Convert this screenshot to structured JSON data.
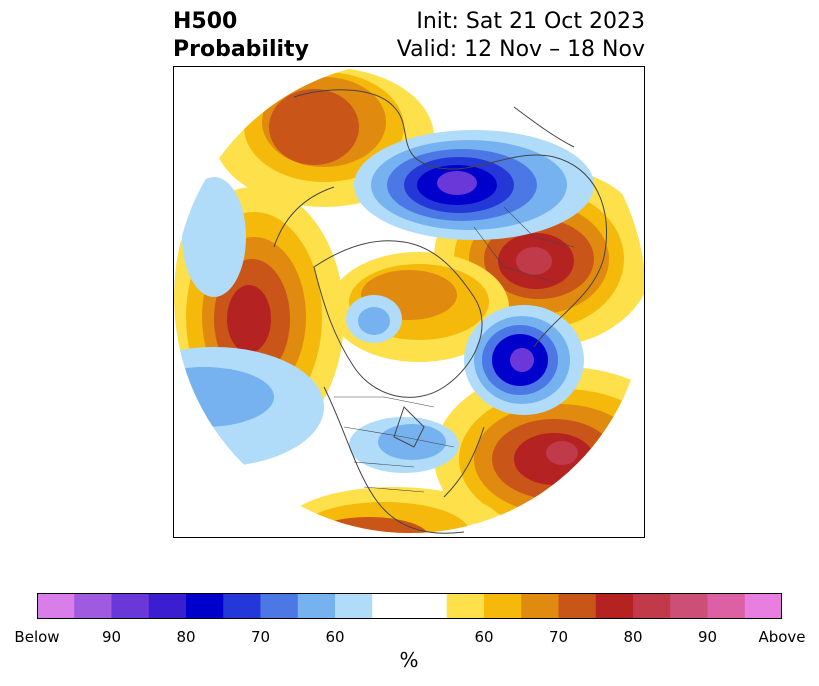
{
  "title": {
    "left_line1": "H500",
    "left_line2": "Probability",
    "right_line1": "Init: Sat 21 Oct 2023",
    "right_line2": "Valid: 12 Nov – 18 Nov"
  },
  "colors": {
    "below": [
      "#d97ee8",
      "#a05ae0",
      "#6a38d8",
      "#3a1ed0",
      "#0000cc",
      "#2438d8",
      "#4c78e6",
      "#76b2f0",
      "#b0dcfa"
    ],
    "neutral": "#ffffff",
    "above": [
      "#fde04a",
      "#f4b90a",
      "#e08a10",
      "#c95519",
      "#b42222",
      "#c03a4a",
      "#cc4f78",
      "#dc60a4",
      "#e77ee0"
    ],
    "coastline": "#444444"
  },
  "colorbar": {
    "tick_labels": [
      "Below",
      "90",
      "80",
      "70",
      "60",
      "60",
      "70",
      "80",
      "90",
      "Above"
    ],
    "unit_label": "%"
  },
  "map": {
    "projection": "north-polar-stereographic",
    "features": [
      "coastlines",
      "country-borders",
      "state-borders"
    ]
  }
}
